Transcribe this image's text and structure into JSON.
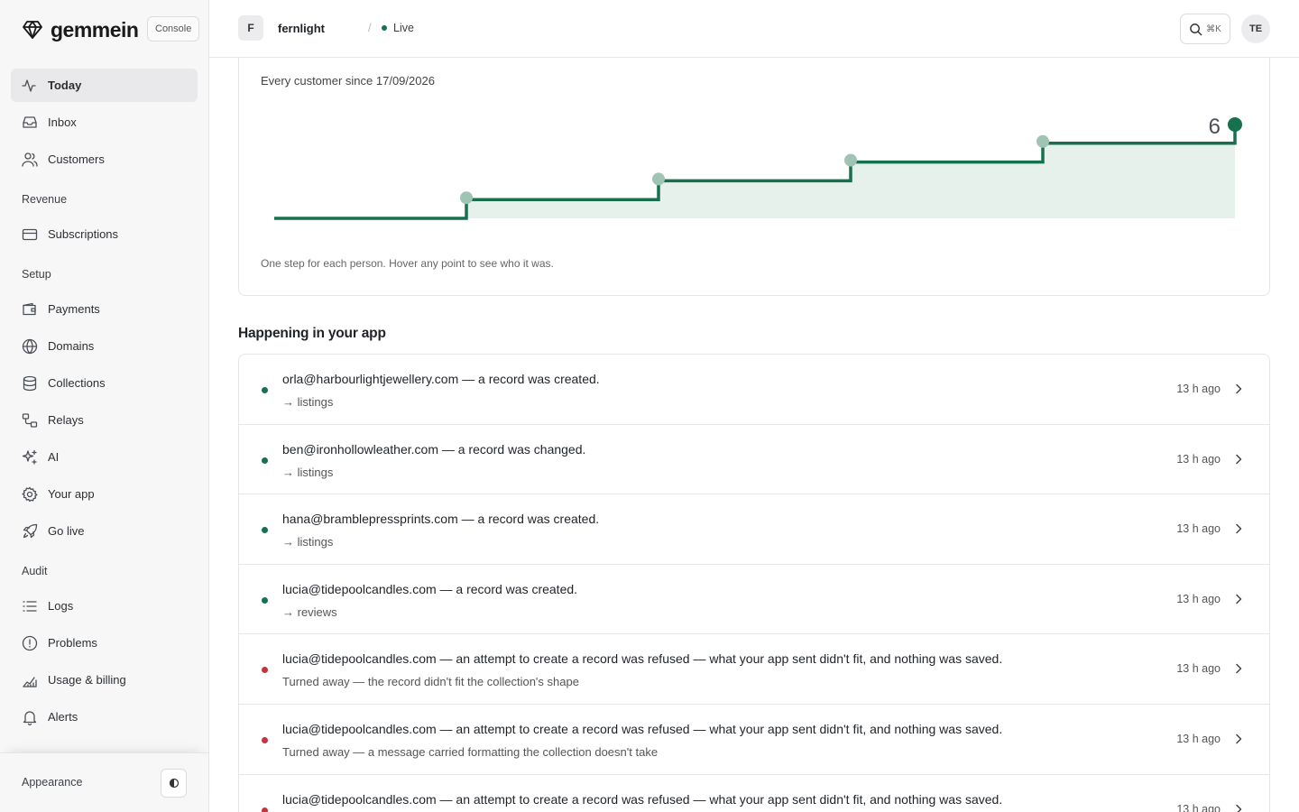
{
  "brand": {
    "name": "gemmein",
    "console_label": "Console"
  },
  "sidebar": {
    "primary": [
      {
        "label": "Today",
        "icon": "activity-icon",
        "active": true
      },
      {
        "label": "Inbox",
        "icon": "inbox-icon"
      },
      {
        "label": "Customers",
        "icon": "users-icon"
      }
    ],
    "sections": [
      {
        "title": "Revenue",
        "items": [
          {
            "label": "Subscriptions",
            "icon": "card-icon"
          }
        ]
      },
      {
        "title": "Setup",
        "items": [
          {
            "label": "Payments",
            "icon": "wallet-icon"
          },
          {
            "label": "Domains",
            "icon": "globe-icon"
          },
          {
            "label": "Collections",
            "icon": "database-icon"
          },
          {
            "label": "Relays",
            "icon": "relay-icon"
          },
          {
            "label": "AI",
            "icon": "sparkle-icon"
          },
          {
            "label": "Your app",
            "icon": "gear-icon"
          },
          {
            "label": "Go live",
            "icon": "rocket-icon"
          }
        ]
      },
      {
        "title": "Audit",
        "items": [
          {
            "label": "Logs",
            "icon": "list-icon"
          },
          {
            "label": "Problems",
            "icon": "alert-circle-icon"
          },
          {
            "label": "Usage & billing",
            "icon": "chart-icon"
          },
          {
            "label": "Alerts",
            "icon": "bell-icon"
          }
        ]
      }
    ],
    "appearance_label": "Appearance"
  },
  "header": {
    "app_initial": "F",
    "app_name": "fernlight",
    "separator": "/",
    "status": "Live",
    "search_shortcut": "⌘K",
    "user_initials": "TE"
  },
  "chart_data": {
    "type": "line",
    "step": true,
    "title": "Every customer since 17/09/2026",
    "note": "One step for each person. Hover any point to see who it was.",
    "x": [
      1,
      2,
      3,
      4,
      5,
      6
    ],
    "values": [
      1,
      2,
      3,
      4,
      5,
      6
    ],
    "last_value_label": "6",
    "colors": {
      "line": "#17704e",
      "fill": "#e6f1ec",
      "marker": "#9fc4b3"
    }
  },
  "activity": {
    "title": "Happening in your app",
    "events": [
      {
        "status": "ok",
        "title": "orla@harbourlightjewellery.com — a record was created.",
        "sub": "→ listings",
        "time": "13 h ago"
      },
      {
        "status": "ok",
        "title": "ben@ironhollowleather.com — a record was changed.",
        "sub": "→ listings",
        "time": "13 h ago"
      },
      {
        "status": "ok",
        "title": "hana@bramblepressprints.com — a record was created.",
        "sub": "→ listings",
        "time": "13 h ago"
      },
      {
        "status": "ok",
        "title": "lucia@tidepoolcandles.com — a record was created.",
        "sub": "→ reviews",
        "time": "13 h ago"
      },
      {
        "status": "err",
        "title": "lucia@tidepoolcandles.com — an attempt to create a record was refused — what your app sent didn't fit, and nothing was saved.",
        "sub": "Turned away — the record didn't fit the collection's shape",
        "time": "13 h ago"
      },
      {
        "status": "err",
        "title": "lucia@tidepoolcandles.com — an attempt to create a record was refused — what your app sent didn't fit, and nothing was saved.",
        "sub": "Turned away — a message carried formatting the collection doesn't take",
        "time": "13 h ago"
      },
      {
        "status": "err",
        "title": "lucia@tidepoolcandles.com — an attempt to create a record was refused — what your app sent didn't fit, and nothing was saved.",
        "sub": "",
        "time": "13 h ago"
      }
    ]
  }
}
